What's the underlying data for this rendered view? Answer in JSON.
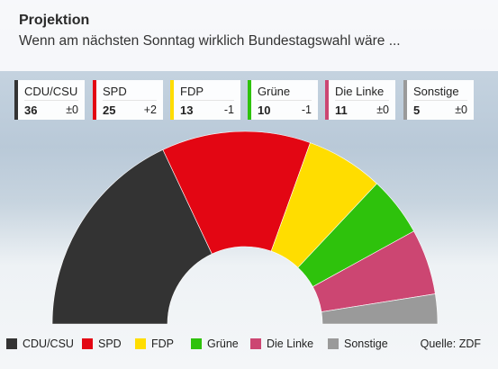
{
  "header": {
    "title": "Projektion",
    "subtitle": "Wenn am nächsten Sonntag wirklich Bundestagswahl wäre ..."
  },
  "chart_data": {
    "type": "pie",
    "subtype": "half-donut seat distribution",
    "series": [
      {
        "name": "CDU/CSU",
        "value": 36,
        "change": "±0",
        "color": "#333333"
      },
      {
        "name": "SPD",
        "value": 25,
        "change": "+2",
        "color": "#e30613"
      },
      {
        "name": "FDP",
        "value": 13,
        "change": "-1",
        "color": "#ffdd00"
      },
      {
        "name": "Grüne",
        "value": 10,
        "change": "-1",
        "color": "#2ec20c"
      },
      {
        "name": "Die Linke",
        "value": 11,
        "change": "±0",
        "color": "#cc4672"
      },
      {
        "name": "Sonstige",
        "value": 5,
        "change": "±0",
        "color": "#9a9a9a"
      }
    ]
  },
  "source": "Quelle: ZDF"
}
